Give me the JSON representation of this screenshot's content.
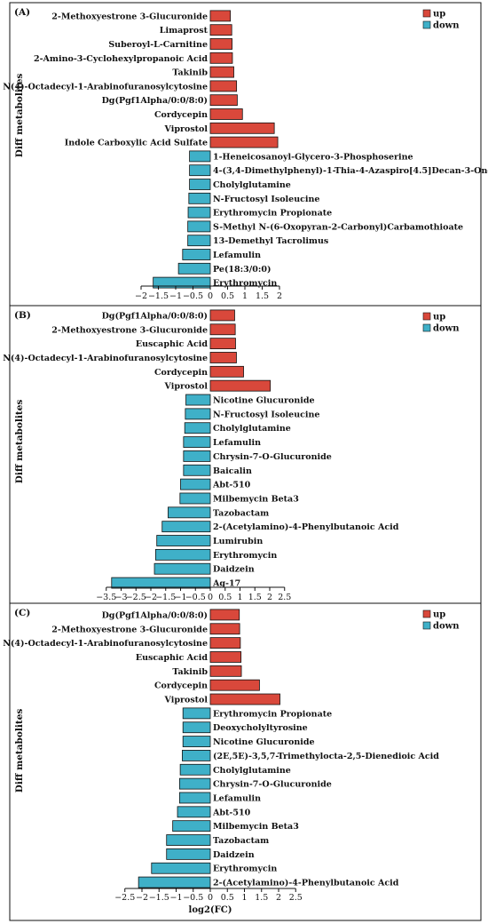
{
  "figure": {
    "ylabel": "Diff metabolites",
    "xlabel": "log2(FC)",
    "legend": {
      "up_label": "up",
      "down_label": "down",
      "position": "top-right"
    }
  },
  "colors": {
    "up": "#d9483b",
    "down": "#3fb0c8",
    "axis": "#111111"
  },
  "chart_data": [
    {
      "type": "bar",
      "orientation": "horizontal",
      "panel": "(A)",
      "xlim": [
        -2,
        2
      ],
      "xticks": [
        -2,
        -1.5,
        -1,
        -0.5,
        0,
        0.5,
        1,
        1.5,
        2
      ],
      "xticklabels": [
        "−2",
        "−1.5",
        "−1",
        "−0.5",
        "0",
        "0.5",
        "1",
        "1.5",
        "2"
      ],
      "categories": [
        "2-Methoxyestrone 3-Glucuronide",
        "Limaprost",
        "Suberoyl-L-Carnitine",
        "2-Amino-3-Cyclohexylpropanoic Acid",
        "Takinib",
        "N(4)-Octadecyl-1-Arabinofuranosylcytosine",
        "Dg(Pgf1Alpha/0:0/8:0)",
        "Cordycepin",
        "Viprostol",
        "Indole Carboxylic Acid Sulfate",
        "1-Heneicosanoyl-Glycero-3-Phosphoserine",
        "4-(3,4-Dimethylphenyl)-1-Thia-4-Azaspiro[4.5]Decan-3-One",
        "Cholylglutamine",
        "N-Fructosyl Isoleucine",
        "Erythromycin Propionate",
        "S-Methyl N-(6-Oxopyran-2-Carbonyl)Carbamothioate",
        "13-Demethyl Tacrolimus",
        "Lefamulin",
        "Pe(18:3/0:0)",
        "Erythromycin"
      ],
      "values": [
        0.58,
        0.62,
        0.63,
        0.64,
        0.68,
        0.76,
        0.78,
        0.93,
        1.85,
        1.95,
        -0.6,
        -0.6,
        -0.6,
        -0.62,
        -0.64,
        -0.65,
        -0.65,
        -0.8,
        -0.92,
        -1.65
      ]
    },
    {
      "type": "bar",
      "orientation": "horizontal",
      "panel": "(B)",
      "xlim": [
        -3.5,
        2.5
      ],
      "xticks": [
        -3.5,
        -3,
        -2.5,
        -2,
        -1.5,
        -1,
        -0.5,
        0,
        0.5,
        1,
        1.5,
        2,
        2.5
      ],
      "xticklabels": [
        "−3.5",
        "−3",
        "−2.5",
        "−2",
        "−1.5",
        "−1",
        "−0.5",
        "0",
        "0.5",
        "1",
        "1.5",
        "2",
        "2.5"
      ],
      "categories": [
        "Dg(Pgf1Alpha/0:0/8:0)",
        "2-Methoxyestrone 3-Glucuronide",
        "Euscaphic Acid",
        "N(4)-Octadecyl-1-Arabinofuranosylcytosine",
        "Cordycepin",
        "Viprostol",
        "Nicotine Glucuronide",
        "N-Fructosyl Isoleucine",
        "Cholylglutamine",
        "Lefamulin",
        "Chrysin-7-O-Glucuronide",
        "Baicalin",
        "Abt-510",
        "Milbemycin Beta3",
        "Tazobactam",
        "2-(Acetylamino)-4-Phenylbutanoic Acid",
        "Lumirubin",
        "Erythromycin",
        "Daidzein",
        "Ag-17"
      ],
      "values": [
        0.82,
        0.84,
        0.85,
        0.88,
        1.12,
        2.02,
        -0.82,
        -0.84,
        -0.86,
        -0.9,
        -0.9,
        -0.9,
        -1.0,
        -1.02,
        -1.42,
        -1.62,
        -1.8,
        -1.84,
        -1.88,
        -3.32
      ]
    },
    {
      "type": "bar",
      "orientation": "horizontal",
      "panel": "(C)",
      "xlim": [
        -2.5,
        2.5
      ],
      "xticks": [
        -2.5,
        -2,
        -1.5,
        -1,
        -0.5,
        0,
        0.5,
        1,
        1.5,
        2,
        2.5
      ],
      "xticklabels": [
        "−2.5",
        "−2",
        "−1.5",
        "−1",
        "−0.5",
        "0",
        "0.5",
        "1",
        "1.5",
        "2",
        "2.5"
      ],
      "categories": [
        "Dg(Pgf1Alpha/0:0/8:0)",
        "2-Methoxyestrone 3-Glucuronide",
        "N(4)-Octadecyl-1-Arabinofuranosylcytosine",
        "Euscaphic Acid",
        "Takinib",
        "Cordycepin",
        "Viprostol",
        "Erythromycin Propionate",
        "Deoxycholyltyrosine",
        "Nicotine Glucuronide",
        "(2E,5E)-3,5,7-Trimethylocta-2,5-Dienedioic Acid",
        "Cholylglutamine",
        "Chrysin-7-O-Glucuronide",
        "Lefamulin",
        "Abt-510",
        "Milbemycin Beta3",
        "Tazobactam",
        "Daidzein",
        "Erythromycin",
        "2-(Acetylamino)-4-Phenylbutanoic Acid"
      ],
      "values": [
        0.85,
        0.86,
        0.88,
        0.9,
        0.91,
        1.44,
        2.04,
        -0.8,
        -0.8,
        -0.8,
        -0.82,
        -0.88,
        -0.9,
        -0.9,
        -0.96,
        -1.1,
        -1.28,
        -1.28,
        -1.72,
        -2.1
      ]
    }
  ]
}
